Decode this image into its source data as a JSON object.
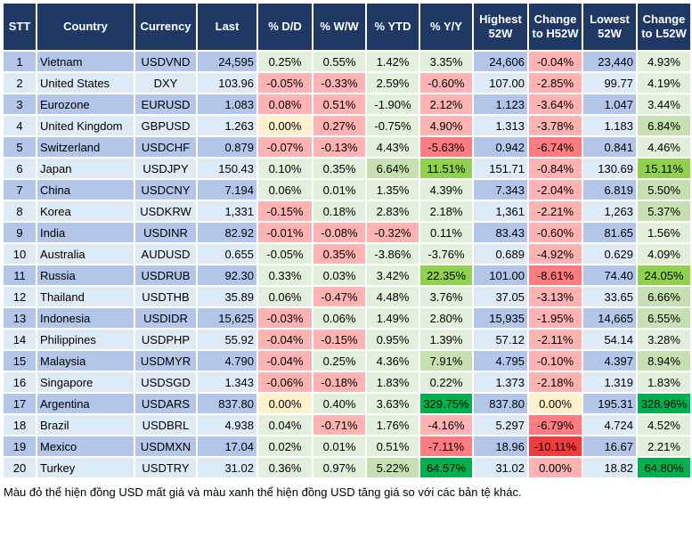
{
  "headers": [
    "STT",
    "Country",
    "Currency",
    "Last",
    "% D/D",
    "% W/W",
    "% YTD",
    "% Y/Y",
    "Highest 52W",
    "Change to H52W",
    "Lowest 52W",
    "Change to L52W"
  ],
  "legend_colors": {
    "light_green": "#e2efda",
    "green": "#c6e0b4",
    "bright_green": "#92d050",
    "dark_green": "#00b050",
    "pink": "#ffb3b3",
    "red": "#ff7c80",
    "strong_red": "#f03c3c",
    "yellow": "#fff2cc",
    "header": "#203864"
  },
  "rows": [
    {
      "stt": "1",
      "country": "Vietnam",
      "currency": "USDVND",
      "last": "24,595",
      "dd": "0.25%",
      "ww": "0.55%",
      "ytd": "1.42%",
      "yy": "3.35%",
      "high": "24,606",
      "ch": "-0.04%",
      "low": "23,440",
      "cl": "4.93%",
      "colors": "ggggpg"
    },
    {
      "stt": "2",
      "country": "United States",
      "currency": "DXY",
      "last": "103.96",
      "dd": "-0.05%",
      "ww": "-0.33%",
      "ytd": "2.59%",
      "yy": "-0.60%",
      "high": "107.00",
      "ch": "-2.85%",
      "low": "99.77",
      "cl": "4.19%",
      "colors": "ppgppg"
    },
    {
      "stt": "3",
      "country": "Eurozone",
      "currency": "EURUSD",
      "last": "1.083",
      "dd": "0.08%",
      "ww": "0.51%",
      "ytd": "-1.90%",
      "yy": "2.12%",
      "high": "1.123",
      "ch": "-3.64%",
      "low": "1.047",
      "cl": "3.44%",
      "colors": "ppgppg"
    },
    {
      "stt": "4",
      "country": "United Kingdom",
      "currency": "GBPUSD",
      "last": "1.263",
      "dd": "0.00%",
      "ww": "0.27%",
      "ytd": "-0.75%",
      "yy": "4.90%",
      "high": "1.313",
      "ch": "-3.78%",
      "low": "1.183",
      "cl": "6.84%",
      "colors": "ypgppG"
    },
    {
      "stt": "5",
      "country": "Switzerland",
      "currency": "USDCHF",
      "last": "0.879",
      "dd": "-0.07%",
      "ww": "-0.13%",
      "ytd": "4.43%",
      "yy": "-5.63%",
      "high": "0.942",
      "ch": "-6.74%",
      "low": "0.841",
      "cl": "4.46%",
      "colors": "ppgRRg"
    },
    {
      "stt": "6",
      "country": "Japan",
      "currency": "USDJPY",
      "last": "150.43",
      "dd": "0.10%",
      "ww": "0.35%",
      "ytd": "6.64%",
      "yy": "11.51%",
      "high": "151.71",
      "ch": "-0.84%",
      "low": "130.69",
      "cl": "15.11%",
      "colors": "ggGBpB"
    },
    {
      "stt": "7",
      "country": "China",
      "currency": "USDCNY",
      "last": "7.194",
      "dd": "0.06%",
      "ww": "0.01%",
      "ytd": "1.35%",
      "yy": "4.39%",
      "high": "7.343",
      "ch": "-2.04%",
      "low": "6.819",
      "cl": "5.50%",
      "colors": "ggggpG"
    },
    {
      "stt": "8",
      "country": "Korea",
      "currency": "USDKRW",
      "last": "1,331",
      "dd": "-0.15%",
      "ww": "0.18%",
      "ytd": "2.83%",
      "yy": "2.18%",
      "high": "1,361",
      "ch": "-2.21%",
      "low": "1,263",
      "cl": "5.37%",
      "colors": "pgggpG"
    },
    {
      "stt": "9",
      "country": "India",
      "currency": "USDINR",
      "last": "82.92",
      "dd": "-0.01%",
      "ww": "-0.08%",
      "ytd": "-0.32%",
      "yy": "0.11%",
      "high": "83.43",
      "ch": "-0.60%",
      "low": "81.65",
      "cl": "1.56%",
      "colors": "pppgpg"
    },
    {
      "stt": "10",
      "country": "Australia",
      "currency": "AUDUSD",
      "last": "0.655",
      "dd": "-0.05%",
      "ww": "0.35%",
      "ytd": "-3.86%",
      "yy": "-3.76%",
      "high": "0.689",
      "ch": "-4.92%",
      "low": "0.629",
      "cl": "4.09%",
      "colors": "gpggpg"
    },
    {
      "stt": "11",
      "country": "Russia",
      "currency": "USDRUB",
      "last": "92.30",
      "dd": "0.33%",
      "ww": "0.03%",
      "ytd": "3.42%",
      "yy": "22.35%",
      "high": "101.00",
      "ch": "-8.61%",
      "low": "74.40",
      "cl": "24.05%",
      "colors": "gggBRB"
    },
    {
      "stt": "12",
      "country": "Thailand",
      "currency": "USDTHB",
      "last": "35.89",
      "dd": "0.06%",
      "ww": "-0.47%",
      "ytd": "4.48%",
      "yy": "3.76%",
      "high": "37.05",
      "ch": "-3.13%",
      "low": "33.65",
      "cl": "6.66%",
      "colors": "gpggpG"
    },
    {
      "stt": "13",
      "country": "Indonesia",
      "currency": "USDIDR",
      "last": "15,625",
      "dd": "-0.03%",
      "ww": "0.06%",
      "ytd": "1.49%",
      "yy": "2.80%",
      "high": "15,935",
      "ch": "-1.95%",
      "low": "14,665",
      "cl": "6.55%",
      "colors": "pgggpG"
    },
    {
      "stt": "14",
      "country": "Philippines",
      "currency": "USDPHP",
      "last": "55.92",
      "dd": "-0.04%",
      "ww": "-0.15%",
      "ytd": "0.95%",
      "yy": "1.39%",
      "high": "57.12",
      "ch": "-2.11%",
      "low": "54.14",
      "cl": "3.28%",
      "colors": "ppggpg"
    },
    {
      "stt": "15",
      "country": "Malaysia",
      "currency": "USDMYR",
      "last": "4.790",
      "dd": "-0.04%",
      "ww": "0.25%",
      "ytd": "4.36%",
      "yy": "7.91%",
      "high": "4.795",
      "ch": "-0.10%",
      "low": "4.397",
      "cl": "8.94%",
      "colors": "pggGpG"
    },
    {
      "stt": "16",
      "country": "Singapore",
      "currency": "USDSGD",
      "last": "1.343",
      "dd": "-0.06%",
      "ww": "-0.18%",
      "ytd": "1.83%",
      "yy": "0.22%",
      "high": "1.373",
      "ch": "-2.18%",
      "low": "1.319",
      "cl": "1.83%",
      "colors": "ppggpg"
    },
    {
      "stt": "17",
      "country": "Argentina",
      "currency": "USDARS",
      "last": "837.80",
      "dd": "0.00%",
      "ww": "0.40%",
      "ytd": "3.63%",
      "yy": "329.75%",
      "high": "837.80",
      "ch": "0.00%",
      "low": "195.31",
      "cl": "328.96%",
      "colors": "yggDyD"
    },
    {
      "stt": "18",
      "country": "Brazil",
      "currency": "USDBRL",
      "last": "4.938",
      "dd": "0.04%",
      "ww": "-0.71%",
      "ytd": "1.76%",
      "yy": "-4.16%",
      "high": "5.297",
      "ch": "-6.79%",
      "low": "4.724",
      "cl": "4.52%",
      "colors": "gpgpRg"
    },
    {
      "stt": "19",
      "country": "Mexico",
      "currency": "USDMXN",
      "last": "17.04",
      "dd": "0.02%",
      "ww": "0.01%",
      "ytd": "0.51%",
      "yy": "-7.11%",
      "high": "18.96",
      "ch": "-10.11%",
      "low": "16.67",
      "cl": "2.21%",
      "colors": "gggRXg"
    },
    {
      "stt": "20",
      "country": "Turkey",
      "currency": "USDTRY",
      "last": "31.02",
      "dd": "0.36%",
      "ww": "0.97%",
      "ytd": "5.22%",
      "yy": "64.57%",
      "high": "31.02",
      "ch": "0.00%",
      "low": "18.82",
      "cl": "64.80%",
      "colors": "ggGDpD"
    }
  ],
  "footnote": "Màu đỏ thể hiện đồng USD mất giá và màu xanh thể hiện đồng USD tăng giá so với các bản tệ khác."
}
